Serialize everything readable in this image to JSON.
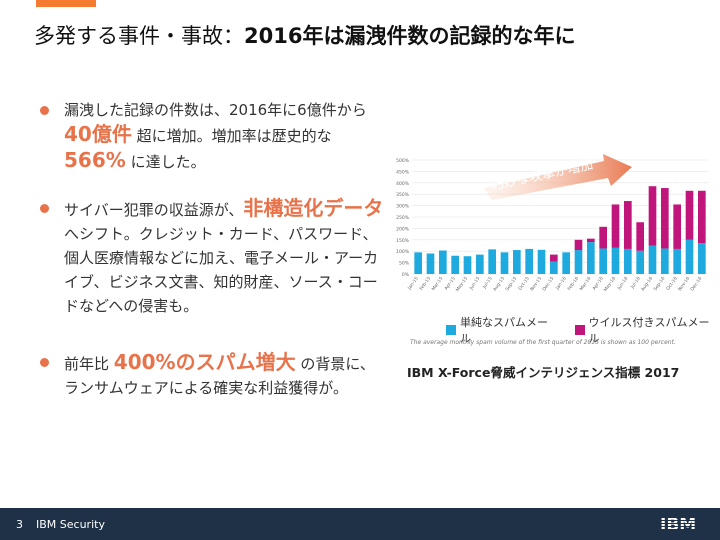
{
  "title": {
    "prefix": "多発する事件・事故：",
    "bold": "2016年は漏洩件数の記録的な年に"
  },
  "bullets": {
    "b1": {
      "t1": "漏洩した記録の件数は、2016年に6億件から ",
      "h1": "40億件",
      "t2": " 超に増加。増加率は歴史的な ",
      "h2": "566%",
      "t3": " に達した。"
    },
    "b2": {
      "t1": "サイバー犯罪の収益源が、",
      "h1": "非構造化データ",
      "t2": "へシフト。クレジット・カード、パスワード、個人医療情報などに加え、電子メール・アーカイブ、ビジネス文書、知的財産、ソース・コードなどへの侵害も。"
    },
    "b3": {
      "t1": "前年比 ",
      "h1": "400%のスパム増大",
      "t2": " の背景に、ランサムウェアによる確実な利益獲得が。"
    }
  },
  "chart_data": {
    "type": "bar",
    "annotation": "巧妙な攻撃が増加",
    "y_ticks": [
      "0%",
      "50%",
      "100%",
      "150%",
      "200%",
      "250%",
      "300%",
      "350%",
      "400%",
      "450%",
      "500%"
    ],
    "ylim": [
      0,
      500
    ],
    "categories": [
      "Jan-15",
      "Feb-15",
      "Mar-15",
      "Apr-15",
      "May-15",
      "Jun-15",
      "Jul-15",
      "Aug-15",
      "Sep-15",
      "Oct-15",
      "Nov-15",
      "Dec-15",
      "Jan-16",
      "Feb-16",
      "Mar-16",
      "Apr-16",
      "May-16",
      "Jun-16",
      "Jul-16",
      "Aug-16",
      "Sep-16",
      "Oct-16",
      "Nov-16",
      "Dec-16"
    ],
    "series": [
      {
        "name": "単純なスパムメール",
        "color": "#1eaadf",
        "values": [
          95,
          90,
          103,
          80,
          78,
          85,
          108,
          95,
          105,
          110,
          106,
          55,
          95,
          105,
          140,
          112,
          115,
          110,
          102,
          125,
          112,
          110,
          150,
          135
        ]
      },
      {
        "name": "ウイルス付きスパムメール",
        "color": "#c0157a",
        "values": [
          0,
          0,
          0,
          0,
          0,
          0,
          0,
          0,
          0,
          0,
          0,
          30,
          0,
          45,
          15,
          95,
          190,
          210,
          125,
          260,
          265,
          195,
          215,
          230
        ]
      }
    ]
  },
  "chart_note": "The average monthly spam volume of the first quarter of 2015 is shown as 100 percent.",
  "source": "IBM X-Force脅威インテリジェンス指標 2017",
  "footer": {
    "page": "3",
    "label": "IBM Security",
    "logo": "IBM"
  },
  "colors": {
    "accent": "#f47b30",
    "highlight": "#e8734a",
    "footer_bg": "#1f3147"
  }
}
